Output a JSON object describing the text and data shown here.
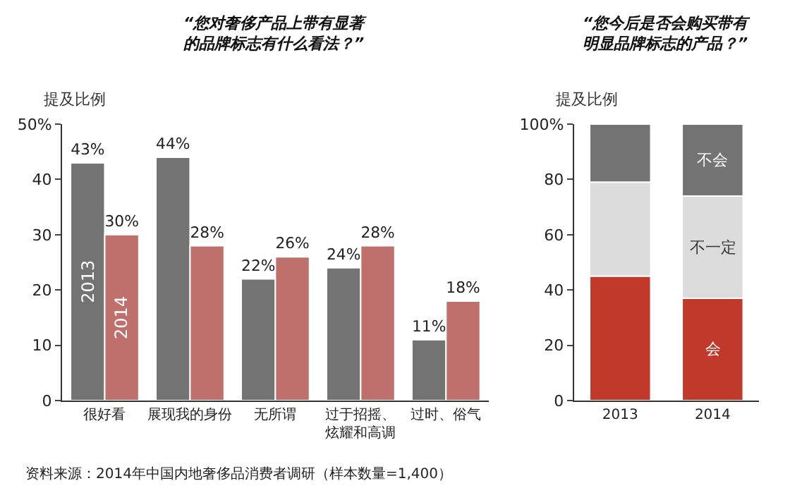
{
  "chart_data": [
    {
      "type": "bar",
      "title": "“您对奢侈产品上带有显著的品牌标志有什么看法？”",
      "ylabel": "提及比例",
      "categories": [
        "很好看",
        "展现我的身份",
        "无所谓",
        "过于招摇、炫耀和高调",
        "过时、俗气"
      ],
      "series": [
        {
          "name": "2013",
          "color": "#737373",
          "values": [
            43,
            44,
            22,
            24,
            11
          ],
          "value_labels": [
            "43%",
            "44%",
            "22%",
            "24%",
            "11%"
          ]
        },
        {
          "name": "2014",
          "color": "#c0706c",
          "values": [
            30,
            28,
            26,
            28,
            18
          ],
          "value_labels": [
            "30%",
            "28%",
            "26%",
            "28%",
            "18%"
          ]
        }
      ],
      "ylim": [
        0,
        50
      ],
      "yticks": [
        0,
        10,
        20,
        30,
        40,
        {
          "value": 50,
          "label": "50%"
        }
      ],
      "legend": false,
      "annotations": [
        "资料来源：2014年中国内地奢侈品消费者调研（样本数量=1,400）"
      ]
    },
    {
      "type": "bar",
      "title": "“您今后是否会购买带有明显品牌标志的产品？”",
      "ylabel": "提及比例",
      "stacked": true,
      "categories": [
        "2013",
        "2014"
      ],
      "series": [
        {
          "name": "会",
          "color": "#c0392b",
          "values": [
            45,
            37
          ]
        },
        {
          "name": "不一定",
          "color": "#dcdcdc",
          "values": [
            34,
            37
          ]
        },
        {
          "name": "不会",
          "color": "#737373",
          "values": [
            21,
            26
          ]
        }
      ],
      "ylim": [
        0,
        100
      ],
      "yticks": [
        0,
        20,
        40,
        60,
        80,
        {
          "value": 100,
          "label": "100%"
        }
      ],
      "legend": false
    }
  ]
}
